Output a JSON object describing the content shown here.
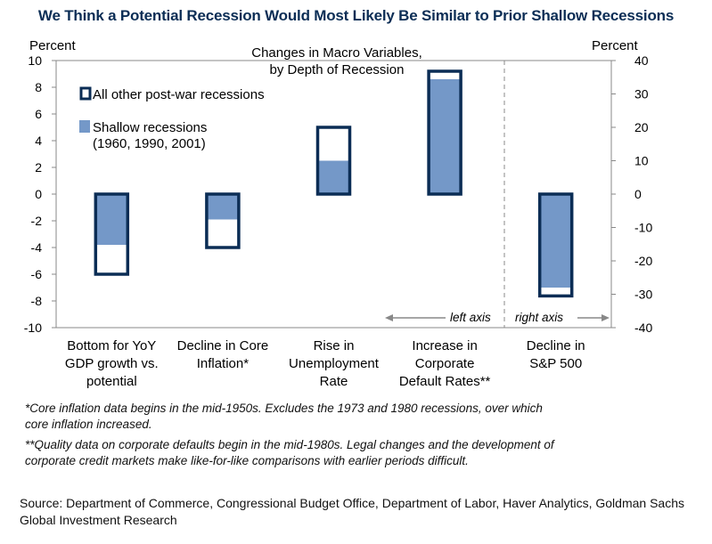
{
  "header": {
    "title": "We Think a Potential Recession Would Most Likely Be Similar to Prior Shallow Recessions"
  },
  "chart_data": {
    "type": "bar",
    "title": "Changes in Macro Variables,",
    "subtitle": "by Depth of Recession",
    "left_axis_label": "Percent",
    "right_axis_label": "Percent",
    "left_ylim": [
      -10,
      10
    ],
    "right_ylim": [
      -40,
      40
    ],
    "left_ticks": [
      "10",
      "8",
      "6",
      "4",
      "2",
      "0",
      "-2",
      "-4",
      "-6",
      "-8",
      "-10"
    ],
    "right_ticks": [
      "40",
      "30",
      "20",
      "10",
      "0",
      "-10",
      "-20",
      "-30",
      "-40"
    ],
    "categories": [
      [
        "Bottom for YoY",
        "GDP growth vs.",
        "potential"
      ],
      [
        "Decline in Core",
        "Inflation*"
      ],
      [
        "Rise in",
        "Unemployment",
        "Rate"
      ],
      [
        "Increase in",
        "Corporate",
        "Default Rates**"
      ],
      [
        "Decline in",
        "S&P 500"
      ]
    ],
    "series": [
      {
        "name": "All other post-war recessions",
        "values": [
          -6.0,
          -4.0,
          5.0,
          9.2,
          -30.5
        ],
        "axis": [
          "left",
          "left",
          "left",
          "left",
          "right"
        ]
      },
      {
        "name": "Shallow recessions (1960, 1990, 2001)",
        "values": [
          -3.8,
          -1.9,
          2.5,
          8.6,
          -28.0
        ],
        "axis": [
          "left",
          "left",
          "left",
          "left",
          "right"
        ]
      }
    ],
    "legend": {
      "entries": [
        "All other post-war recessions",
        "Shallow recessions",
        "(1960, 1990, 2001)"
      ],
      "position": "top-left"
    },
    "axis_markers": {
      "left": "left axis",
      "right": "right axis"
    },
    "grid": false,
    "colors": {
      "outline": "#0b2d55",
      "fill": "#7498c8"
    }
  },
  "notes": {
    "core_line1": "*Core inflation data begins in the mid-1950s. Excludes the 1973 and 1980 recessions, over which",
    "core_line2": "core inflation increased.",
    "default_line1": "**Quality data on corporate defaults begin in the mid-1980s. Legal changes and the development of",
    "default_line2": "corporate credit markets make like-for-like comparisons with earlier periods difficult."
  },
  "source": "Source: Department of Commerce, Congressional Budget Office, Department of Labor, Haver Analytics, Goldman Sachs Global Investment Research"
}
